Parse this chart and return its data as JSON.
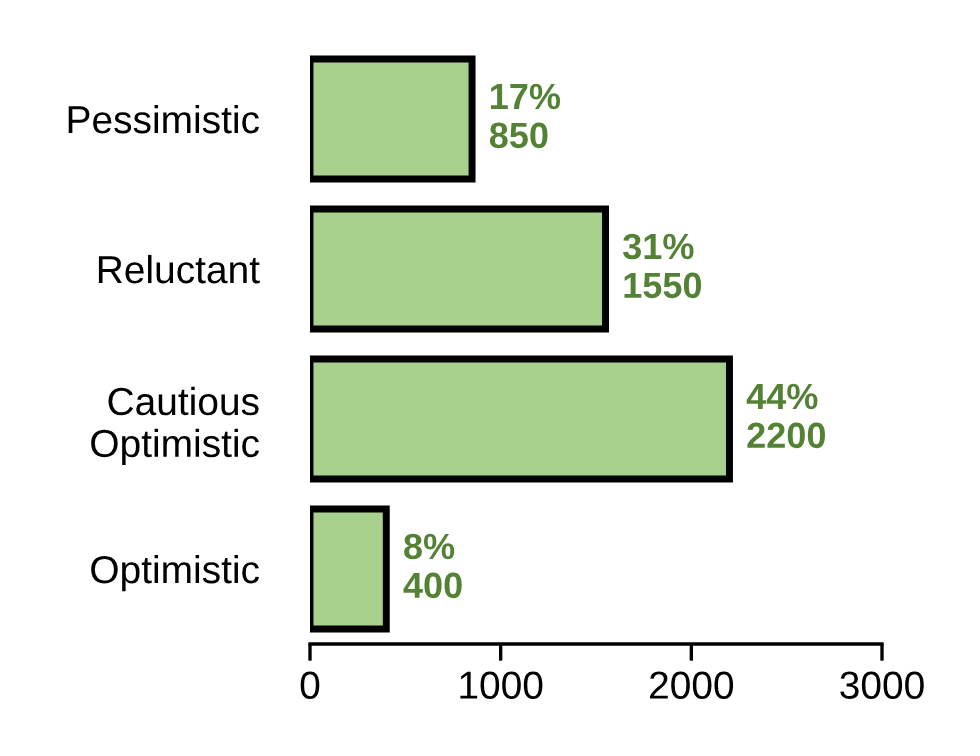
{
  "chart_data": {
    "type": "bar",
    "orientation": "horizontal",
    "categories": [
      "Pessimistic",
      "Reluctant",
      "Cautious\nOptimistic",
      "Optimistic"
    ],
    "values": [
      850,
      1550,
      2200,
      400
    ],
    "value_labels": [
      "17%\n850",
      "31%\n1550",
      "44%\n2200",
      "8%\n400"
    ],
    "color": "#a9d18e",
    "xlim": [
      0,
      3000
    ],
    "xticks": [
      0,
      1000,
      2000,
      3000
    ],
    "grid": false,
    "legend": false
  }
}
